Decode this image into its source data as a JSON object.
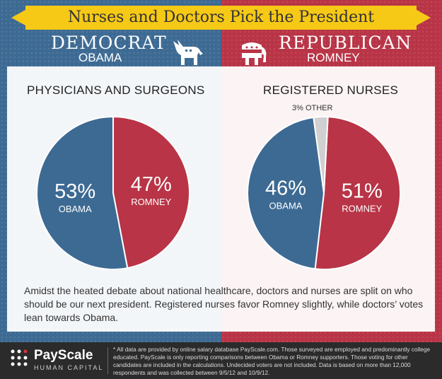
{
  "header": {
    "title": "Nurses and Doctors Pick the President"
  },
  "parties": {
    "left": {
      "party": "DEMOCRAT",
      "candidate": "OBAMA",
      "mascot_icon": "donkey-icon",
      "color": "#3d6a93"
    },
    "right": {
      "party": "REPUBLICAN",
      "candidate": "ROMNEY",
      "mascot_icon": "elephant-icon",
      "color": "#b83446"
    }
  },
  "chart_data": [
    {
      "type": "pie",
      "title": "PHYSICIANS AND SURGEONS",
      "slices": [
        {
          "label": "OBAMA",
          "value": 53,
          "display": "53%",
          "color": "#3d6a93"
        },
        {
          "label": "ROMNEY",
          "value": 47,
          "display": "47%",
          "color": "#b83446"
        }
      ]
    },
    {
      "type": "pie",
      "title": "REGISTERED NURSES",
      "slices": [
        {
          "label": "ROMNEY",
          "value": 51,
          "display": "51%",
          "color": "#b83446"
        },
        {
          "label": "OBAMA",
          "value": 46,
          "display": "46%",
          "color": "#3d6a93"
        },
        {
          "label": "OTHER",
          "value": 3,
          "display": "3% OTHER",
          "color": "#d0d0d0"
        }
      ]
    }
  ],
  "summary": "Amidst the heated debate about national healthcare, doctors and nurses are split on who should be our next president. Registered nurses favor Romney slightly, while doctors’ votes lean towards Obama.",
  "footer": {
    "logo_name": "PayScale",
    "logo_sub": "HUMAN CAPITAL",
    "note": "* All data are provided by online salary database PayScale.com. Those surveyed are employed and predominantly college educated. PayScale is only reporting comparisons between Obama or Romney supporters. Those voting for other candidates are included in the calculations. Undecided voters are not included. Data is based on more than 12,000 respondents and was collected between 9/5/12 and 10/9/12."
  }
}
